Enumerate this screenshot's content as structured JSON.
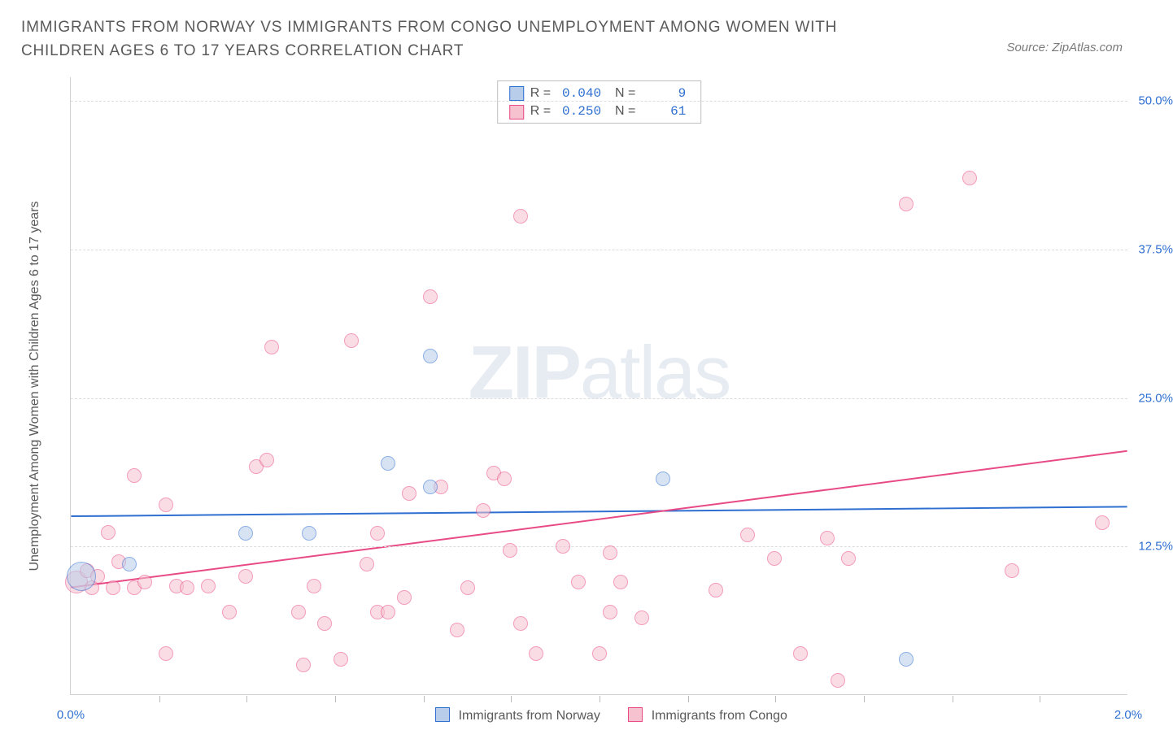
{
  "header": {
    "title": "IMMIGRANTS FROM NORWAY VS IMMIGRANTS FROM CONGO UNEMPLOYMENT AMONG WOMEN WITH CHILDREN AGES 6 TO 17 YEARS CORRELATION CHART",
    "source": "Source: ZipAtlas.com"
  },
  "watermark": {
    "t1": "ZIP",
    "t2": "atlas"
  },
  "chart": {
    "type": "scatter",
    "ylabel": "Unemployment Among Women with Children Ages 6 to 17 years",
    "xlim": [
      0.0,
      2.0
    ],
    "ylim": [
      0.0,
      52.0
    ],
    "x_ticks": [
      0.0,
      2.0
    ],
    "x_tick_labels": [
      "0.0%",
      "2.0%"
    ],
    "x_minor_ticks": [
      0.167,
      0.333,
      0.5,
      0.667,
      0.833,
      1.0,
      1.167,
      1.333,
      1.5,
      1.667,
      1.833
    ],
    "y_gridlines": [
      12.5,
      25.0,
      37.5,
      50.0
    ],
    "y_tick_labels": [
      "12.5%",
      "25.0%",
      "37.5%",
      "50.0%"
    ],
    "background_color": "#ffffff",
    "grid_color": "#dcdcdc",
    "axis_color": "#d0d0d0",
    "text_color": "#5a5a5a",
    "value_color": "#2f6fd0",
    "series": [
      {
        "name": "Immigrants from Norway",
        "fill": "#b8cdea",
        "fill_opacity": 0.55,
        "stroke": "#2f6fd0",
        "R": "0.040",
        "N": "9",
        "marker_r": 9,
        "trend": {
          "y0": 15.0,
          "y1": 15.8,
          "color": "#2f6fd0",
          "width": 2
        },
        "points": [
          {
            "x": 0.02,
            "y": 10.0,
            "r": 18
          },
          {
            "x": 0.11,
            "y": 11.0
          },
          {
            "x": 0.33,
            "y": 13.6
          },
          {
            "x": 0.45,
            "y": 13.6
          },
          {
            "x": 0.6,
            "y": 19.5
          },
          {
            "x": 0.68,
            "y": 28.5
          },
          {
            "x": 0.68,
            "y": 17.5
          },
          {
            "x": 1.12,
            "y": 18.2
          },
          {
            "x": 1.58,
            "y": 3.0
          }
        ]
      },
      {
        "name": "Immigrants from Congo",
        "fill": "#f6c2cf",
        "fill_opacity": 0.55,
        "stroke": "#e84a86",
        "R": "0.250",
        "N": "61",
        "marker_r": 9,
        "trend": {
          "y0": 9.0,
          "y1": 20.5,
          "color": "#e84a86",
          "width": 2
        },
        "points": [
          {
            "x": 0.01,
            "y": 9.5,
            "r": 14
          },
          {
            "x": 0.03,
            "y": 10.5
          },
          {
            "x": 0.04,
            "y": 9.0
          },
          {
            "x": 0.05,
            "y": 10.0
          },
          {
            "x": 0.07,
            "y": 13.7
          },
          {
            "x": 0.08,
            "y": 9.0
          },
          {
            "x": 0.09,
            "y": 11.2
          },
          {
            "x": 0.12,
            "y": 9.0
          },
          {
            "x": 0.14,
            "y": 9.5
          },
          {
            "x": 0.18,
            "y": 3.5
          },
          {
            "x": 0.12,
            "y": 18.5
          },
          {
            "x": 0.18,
            "y": 16.0
          },
          {
            "x": 0.2,
            "y": 9.2
          },
          {
            "x": 0.22,
            "y": 9.0
          },
          {
            "x": 0.26,
            "y": 9.2
          },
          {
            "x": 0.3,
            "y": 7.0
          },
          {
            "x": 0.33,
            "y": 10.0
          },
          {
            "x": 0.35,
            "y": 19.2
          },
          {
            "x": 0.37,
            "y": 19.8
          },
          {
            "x": 0.38,
            "y": 29.3
          },
          {
            "x": 0.43,
            "y": 7.0
          },
          {
            "x": 0.44,
            "y": 2.5
          },
          {
            "x": 0.46,
            "y": 9.2
          },
          {
            "x": 0.48,
            "y": 6.0
          },
          {
            "x": 0.51,
            "y": 3.0
          },
          {
            "x": 0.53,
            "y": 29.8
          },
          {
            "x": 0.56,
            "y": 11.0
          },
          {
            "x": 0.58,
            "y": 7.0
          },
          {
            "x": 0.58,
            "y": 13.6
          },
          {
            "x": 0.6,
            "y": 7.0
          },
          {
            "x": 0.63,
            "y": 8.2
          },
          {
            "x": 0.64,
            "y": 17.0
          },
          {
            "x": 0.68,
            "y": 33.5
          },
          {
            "x": 0.7,
            "y": 17.5
          },
          {
            "x": 0.73,
            "y": 5.5
          },
          {
            "x": 0.75,
            "y": 9.0
          },
          {
            "x": 0.78,
            "y": 15.5
          },
          {
            "x": 0.8,
            "y": 18.7
          },
          {
            "x": 0.82,
            "y": 18.2
          },
          {
            "x": 0.83,
            "y": 12.2
          },
          {
            "x": 0.85,
            "y": 40.3
          },
          {
            "x": 0.85,
            "y": 6.0
          },
          {
            "x": 0.88,
            "y": 3.5
          },
          {
            "x": 0.93,
            "y": 12.5
          },
          {
            "x": 0.96,
            "y": 9.5
          },
          {
            "x": 1.0,
            "y": 3.5
          },
          {
            "x": 1.02,
            "y": 7.0
          },
          {
            "x": 1.02,
            "y": 12.0
          },
          {
            "x": 1.04,
            "y": 9.5
          },
          {
            "x": 1.08,
            "y": 6.5
          },
          {
            "x": 1.22,
            "y": 8.8
          },
          {
            "x": 1.28,
            "y": 13.5
          },
          {
            "x": 1.33,
            "y": 11.5
          },
          {
            "x": 1.38,
            "y": 3.5
          },
          {
            "x": 1.43,
            "y": 13.2
          },
          {
            "x": 1.45,
            "y": 1.2
          },
          {
            "x": 1.47,
            "y": 11.5
          },
          {
            "x": 1.58,
            "y": 41.3
          },
          {
            "x": 1.7,
            "y": 43.5
          },
          {
            "x": 1.78,
            "y": 10.5
          },
          {
            "x": 1.95,
            "y": 14.5
          }
        ]
      }
    ]
  },
  "legend_bottom": {
    "items": [
      {
        "label": "Immigrants from Norway",
        "fill": "#b8cdea",
        "stroke": "#2f6fd0"
      },
      {
        "label": "Immigrants from Congo",
        "fill": "#f6c2cf",
        "stroke": "#e84a86"
      }
    ]
  }
}
